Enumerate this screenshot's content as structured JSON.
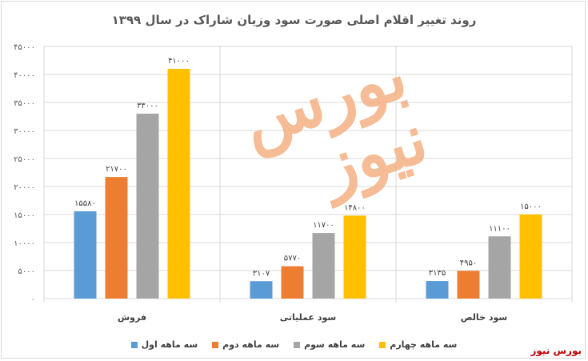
{
  "chart_data": {
    "type": "bar",
    "title": "روند تغییر اقلام اصلی صورت سود وزیان شاراک در سال ۱۳۹۹",
    "categories": [
      "فروش",
      "سود عملیاتی",
      "سود خالص"
    ],
    "series": [
      {
        "name": "سه ماهه اول",
        "color": "#5b9bd5",
        "values": [
          15580,
          3107,
          3135
        ],
        "labels": [
          "۱۵۵۸۰",
          "۳۱۰۷",
          "۳۱۳۵"
        ]
      },
      {
        "name": "سه ماهه دوم",
        "color": "#ed7d31",
        "values": [
          21700,
          5770,
          4950
        ],
        "labels": [
          "۲۱۷۰۰",
          "۵۷۷۰",
          "۴۹۵۰"
        ]
      },
      {
        "name": "سه ماهه سوم",
        "color": "#a5a5a5",
        "values": [
          33000,
          11700,
          11100
        ],
        "labels": [
          "۳۳۰۰۰",
          "۱۱۷۰۰",
          "۱۱۱۰۰"
        ]
      },
      {
        "name": "سه ماهه چهارم",
        "color": "#ffc000",
        "values": [
          41000,
          14800,
          15000
        ],
        "labels": [
          "۴۱۰۰۰",
          "۱۴۸۰۰",
          "۱۵۰۰۰"
        ]
      }
    ],
    "ylim": [
      0,
      45000
    ],
    "yticks": [
      0,
      5000,
      10000,
      15000,
      20000,
      25000,
      30000,
      35000,
      40000,
      45000
    ],
    "ytick_labels": [
      "۰",
      "۵۰۰۰",
      "۱۰۰۰۰",
      "۱۵۰۰۰",
      "۲۰۰۰۰",
      "۲۵۰۰۰",
      "۳۰۰۰۰",
      "۳۵۰۰۰",
      "۴۰۰۰۰",
      "۴۵۰۰۰"
    ],
    "grid": true,
    "legend": "bottom"
  },
  "watermark_text": "بورس نیوز",
  "brand_text": "بورس نیوز"
}
